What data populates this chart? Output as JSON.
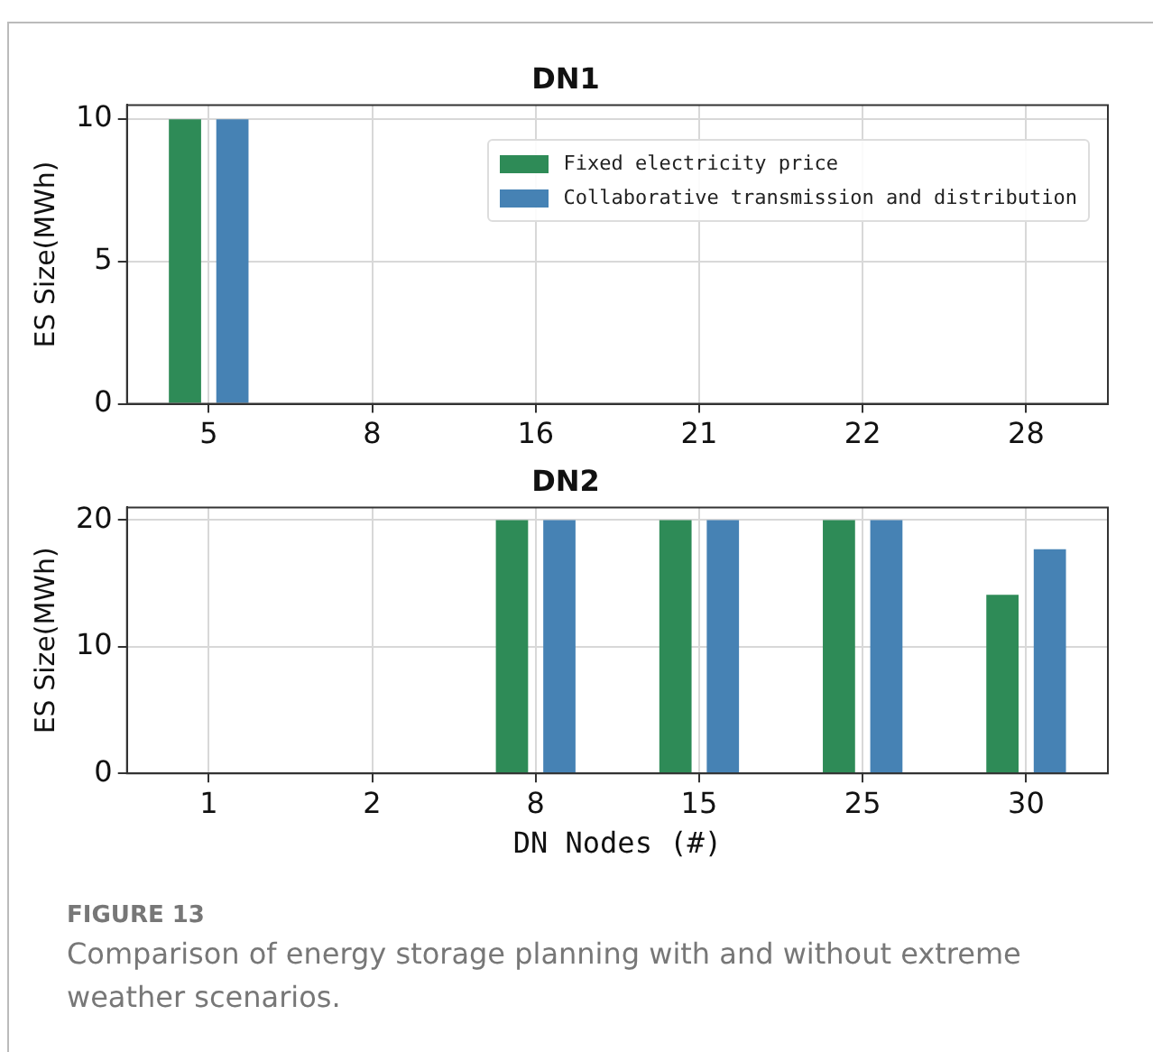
{
  "chart_data": [
    {
      "type": "bar",
      "title": "DN1",
      "ylabel": "ES Size(MWh)",
      "categories": [
        "5",
        "8",
        "16",
        "21",
        "22",
        "28"
      ],
      "series": [
        {
          "name": "Fixed electricity price",
          "color": "#2e8b57",
          "values": [
            10,
            0,
            0,
            0,
            0,
            0
          ]
        },
        {
          "name": "Collaborative transmission and distribution",
          "color": "#4682b4",
          "values": [
            10,
            0,
            0,
            0,
            0,
            0
          ]
        }
      ],
      "ylim": [
        0,
        10.5
      ],
      "yticks": [
        0,
        5,
        10
      ],
      "grid": true,
      "legend": "top right"
    },
    {
      "type": "bar",
      "title": "DN2",
      "xlabel": "DN Nodes (#)",
      "ylabel": "ES Size(MWh)",
      "categories": [
        "1",
        "2",
        "8",
        "15",
        "25",
        "30"
      ],
      "series": [
        {
          "color": "#2e8b57",
          "values": [
            0,
            0,
            20,
            20,
            20,
            14.1
          ]
        },
        {
          "color": "#4682b4",
          "values": [
            0,
            0,
            20,
            20,
            20,
            17.7
          ]
        }
      ],
      "ylim": [
        0,
        21
      ],
      "yticks": [
        0,
        10,
        20
      ],
      "grid": true,
      "annotations": [
        "FIGURE 13",
        "Comparison of energy storage planning with and without extreme weather scenarios."
      ]
    }
  ]
}
